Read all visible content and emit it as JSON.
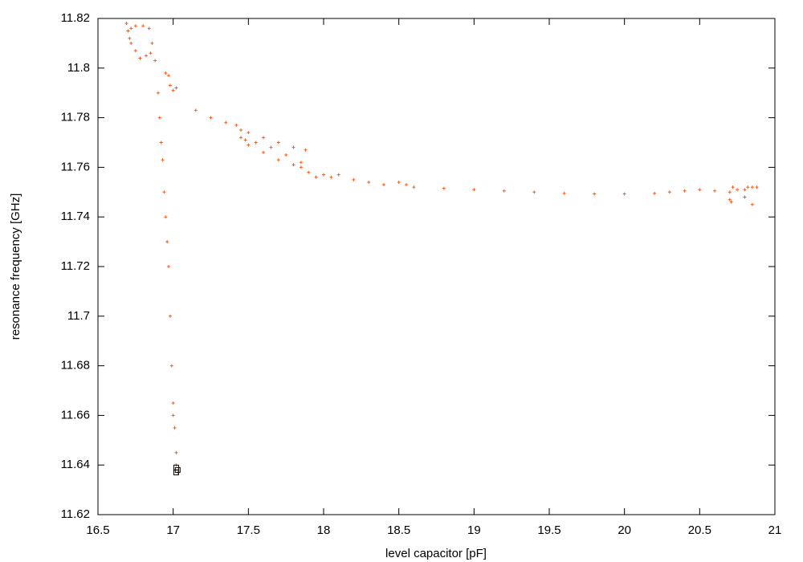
{
  "chart_data": {
    "type": "scatter",
    "xlabel": "level capacitor [pF]",
    "ylabel": "resonance frequency [GHz]",
    "xlim": [
      16.5,
      21
    ],
    "ylim": [
      11.62,
      11.82
    ],
    "xticks": [
      16.5,
      17,
      17.5,
      18,
      18.5,
      19,
      19.5,
      20,
      20.5,
      21
    ],
    "yticks": [
      11.62,
      11.64,
      11.66,
      11.68,
      11.7,
      11.72,
      11.74,
      11.76,
      11.78,
      11.8,
      11.82
    ],
    "grid": false,
    "series": [
      {
        "color": "#ff5a14",
        "marker": "plus",
        "x": [
          16.69,
          16.7,
          16.71,
          16.72,
          16.75,
          16.8,
          16.84,
          16.86,
          16.88,
          16.9,
          16.91,
          16.92,
          16.93,
          16.94,
          16.95,
          16.96,
          16.97,
          16.98,
          16.99,
          17.0,
          17.0,
          17.01,
          17.02,
          17.02,
          17.03,
          16.72,
          16.75,
          16.78,
          16.82,
          16.85,
          16.95,
          16.98,
          17.0,
          17.02,
          16.97,
          17.15,
          17.25,
          17.35,
          17.42,
          17.45,
          17.5,
          17.6,
          17.7,
          17.8,
          17.88,
          17.45,
          17.5,
          17.6,
          17.7,
          17.8,
          17.85,
          17.9,
          17.48,
          17.55,
          17.65,
          17.75,
          17.85,
          17.95,
          18.0,
          18.05,
          18.1,
          18.2,
          18.3,
          18.4,
          18.5,
          18.55,
          18.6,
          18.8,
          19.0,
          19.2,
          19.4,
          19.6,
          19.8,
          20.0,
          20.2,
          20.3,
          20.4,
          20.5,
          20.6,
          20.7,
          20.7,
          20.71,
          20.72,
          20.75,
          20.8,
          20.82,
          20.85,
          20.88,
          20.85,
          20.8
        ],
        "values": [
          11.818,
          11.815,
          11.812,
          11.816,
          11.817,
          11.817,
          11.816,
          11.81,
          11.803,
          11.79,
          11.78,
          11.77,
          11.763,
          11.75,
          11.74,
          11.73,
          11.72,
          11.7,
          11.68,
          11.665,
          11.66,
          11.655,
          11.645,
          11.64,
          11.637,
          11.81,
          11.807,
          11.804,
          11.805,
          11.806,
          11.798,
          11.793,
          11.791,
          11.792,
          11.797,
          11.783,
          11.78,
          11.778,
          11.777,
          11.775,
          11.774,
          11.772,
          11.77,
          11.768,
          11.767,
          11.772,
          11.769,
          11.766,
          11.763,
          11.761,
          11.76,
          11.758,
          11.771,
          11.77,
          11.768,
          11.765,
          11.762,
          11.756,
          11.757,
          11.756,
          11.757,
          11.755,
          11.754,
          11.753,
          11.754,
          11.753,
          11.752,
          11.7515,
          11.751,
          11.7505,
          11.75,
          11.7495,
          11.7493,
          11.7493,
          11.7495,
          11.75,
          11.7505,
          11.751,
          11.7505,
          11.75,
          11.747,
          11.746,
          11.752,
          11.751,
          11.751,
          11.752,
          11.752,
          11.752,
          11.745,
          11.748
        ]
      },
      {
        "color": "#000000",
        "marker": "square",
        "x": [
          17.02,
          17.03,
          17.02
        ],
        "values": [
          11.639,
          11.638,
          11.637
        ]
      }
    ]
  }
}
